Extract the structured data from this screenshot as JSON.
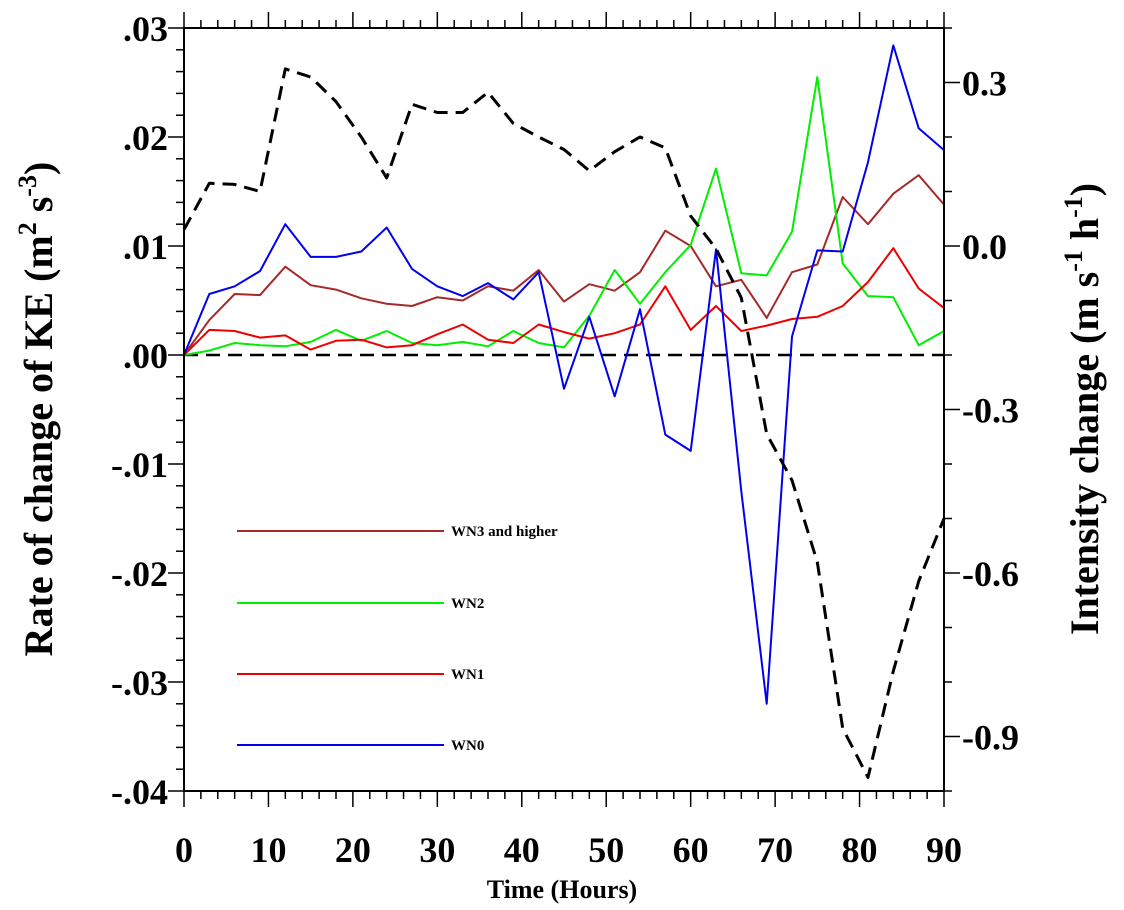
{
  "chart_data": {
    "type": "line",
    "xlabel": "Time (Hours)",
    "ylabel_left": {
      "main": "Rate of change of KE (m",
      "sup1": "2",
      "mid": " s",
      "sup2": "-3",
      "end": ")"
    },
    "ylabel_right": {
      "main": "Intensity change (m s",
      "sup1": "-1",
      "mid": " h",
      "sup2": "-1",
      "end": ")"
    },
    "xlim": [
      0,
      90
    ],
    "ylim_left": [
      -0.04,
      0.03
    ],
    "ylim_right": [
      -1.0,
      0.4
    ],
    "x_ticks": [
      {
        "value": 0,
        "label": "0"
      },
      {
        "value": 10,
        "label": "10"
      },
      {
        "value": 20,
        "label": "20"
      },
      {
        "value": 30,
        "label": "30"
      },
      {
        "value": 40,
        "label": "40"
      },
      {
        "value": 50,
        "label": "50"
      },
      {
        "value": 60,
        "label": "60"
      },
      {
        "value": 70,
        "label": "70"
      },
      {
        "value": 80,
        "label": "80"
      },
      {
        "value": 90,
        "label": "90"
      }
    ],
    "y_left_ticks": [
      {
        "value": 0.03,
        "label": ".03"
      },
      {
        "value": 0.02,
        "label": ".02"
      },
      {
        "value": 0.01,
        "label": ".01"
      },
      {
        "value": 0.0,
        "label": ".00"
      },
      {
        "value": -0.01,
        "label": "-.01"
      },
      {
        "value": -0.02,
        "label": "-.02"
      },
      {
        "value": -0.03,
        "label": "-.03"
      },
      {
        "value": -0.04,
        "label": "-.04"
      }
    ],
    "y_right_ticks": [
      {
        "value": 0.3,
        "label": "0.3"
      },
      {
        "value": 0.0,
        "label": "0.0"
      },
      {
        "value": -0.3,
        "label": "-0.3"
      },
      {
        "value": -0.6,
        "label": "-0.6"
      },
      {
        "value": -0.9,
        "label": "-0.9"
      }
    ],
    "zero_line": 0.0,
    "x": [
      0,
      3,
      6,
      9,
      12,
      15,
      18,
      21,
      24,
      27,
      30,
      33,
      36,
      39,
      42,
      45,
      48,
      51,
      54,
      57,
      60,
      63,
      66,
      69,
      72,
      75,
      78,
      81,
      84,
      87,
      90
    ],
    "series": [
      {
        "name": "WN3 and higher",
        "axis": "left",
        "color": "#a52a2a",
        "style": "solid",
        "values": [
          0.0,
          0.0032,
          0.0056,
          0.0055,
          0.0081,
          0.0064,
          0.006,
          0.0052,
          0.0047,
          0.0045,
          0.0053,
          0.005,
          0.0063,
          0.0059,
          0.0078,
          0.0049,
          0.0065,
          0.0059,
          0.0076,
          0.0114,
          0.01,
          0.0063,
          0.0069,
          0.0034,
          0.0076,
          0.0083,
          0.0145,
          0.012,
          0.0148,
          0.0165,
          0.0138
        ]
      },
      {
        "name": "WN2",
        "axis": "left",
        "color": "#00ee00",
        "style": "solid",
        "values": [
          0.0,
          0.0004,
          0.0011,
          0.0009,
          0.0008,
          0.0012,
          0.0023,
          0.0013,
          0.0022,
          0.0011,
          0.0009,
          0.0012,
          0.0008,
          0.0022,
          0.0011,
          0.0007,
          0.0036,
          0.0078,
          0.0047,
          0.0076,
          0.0101,
          0.0171,
          0.0075,
          0.0073,
          0.0113,
          0.0255,
          0.0084,
          0.0054,
          0.0053,
          0.0009,
          0.0022
        ]
      },
      {
        "name": "WN1",
        "axis": "left",
        "color": "#ee0000",
        "style": "solid",
        "values": [
          0.0,
          0.0023,
          0.0022,
          0.0016,
          0.0018,
          0.0005,
          0.0013,
          0.0014,
          0.0007,
          0.0009,
          0.0019,
          0.0028,
          0.0014,
          0.0011,
          0.0028,
          0.0021,
          0.0015,
          0.002,
          0.0028,
          0.0063,
          0.0023,
          0.0045,
          0.0022,
          0.0027,
          0.0033,
          0.0035,
          0.0045,
          0.0067,
          0.0098,
          0.0061,
          0.0043
        ]
      },
      {
        "name": "WN0",
        "axis": "left",
        "color": "#0000ee",
        "style": "solid",
        "values": [
          0.0,
          0.0056,
          0.0063,
          0.0077,
          0.012,
          0.009,
          0.009,
          0.0095,
          0.0117,
          0.0079,
          0.0063,
          0.0054,
          0.0066,
          0.0051,
          0.0076,
          -0.0031,
          0.0035,
          -0.0038,
          0.0042,
          -0.0073,
          -0.0088,
          0.0097,
          -0.0125,
          -0.032,
          0.0017,
          0.0096,
          0.0095,
          0.0177,
          0.0284,
          0.0208,
          0.0188
        ]
      },
      {
        "axis": "right",
        "color": "#000000",
        "style": "dashed",
        "values": [
          0.03,
          0.115,
          0.113,
          0.1,
          0.325,
          0.31,
          0.265,
          0.2,
          0.125,
          0.26,
          0.245,
          0.245,
          0.282,
          0.225,
          0.2,
          0.177,
          0.138,
          0.173,
          0.2,
          0.18,
          0.055,
          -0.005,
          -0.095,
          -0.345,
          -0.43,
          -0.58,
          -0.885,
          -0.975,
          -0.78,
          -0.615,
          -0.5
        ]
      }
    ]
  }
}
